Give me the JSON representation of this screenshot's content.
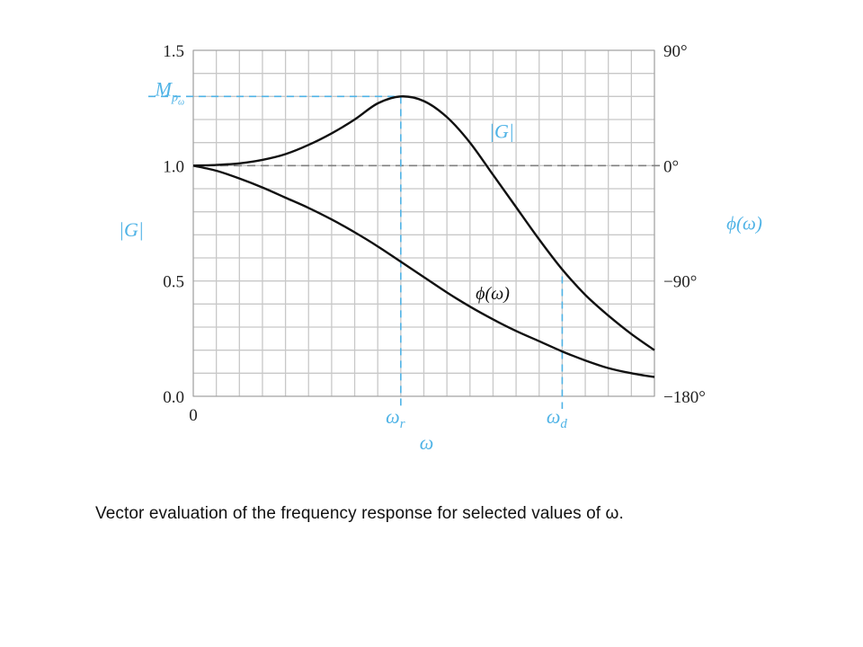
{
  "caption": "Vector evaluation of the frequency response for selected values of ω.",
  "colors": {
    "annotation": "#4fb3e6",
    "curve": "#111111",
    "grid": "#c8c8c8",
    "reference": "#808080"
  },
  "chart_data": {
    "type": "line",
    "grid": true,
    "xlabel": "ω",
    "x_ticks": [
      {
        "value": 0,
        "label": "0"
      }
    ],
    "x_annotations": [
      {
        "name": "omega_r",
        "value": 0.45,
        "base": "ω",
        "sub": "r"
      },
      {
        "name": "omega_d",
        "value": 0.8,
        "base": "ω",
        "sub": "d"
      }
    ],
    "left_axis": {
      "label": "|G|",
      "ylim": [
        0,
        1.5
      ],
      "ticks": [
        "0.0",
        "0.5",
        "1.0",
        "1.5"
      ],
      "peak_label": {
        "base": "M",
        "sub": "p",
        "subsub": "ω",
        "value": 1.3
      }
    },
    "right_axis": {
      "label": "ϕ(ω)",
      "ylim": [
        -180,
        90
      ],
      "ticks": [
        "−180°",
        "−90°",
        "0°",
        "90°"
      ]
    },
    "series": [
      {
        "name": "|G|",
        "axis": "left",
        "label": "|G|",
        "x": [
          0,
          0.05,
          0.1,
          0.15,
          0.2,
          0.25,
          0.3,
          0.35,
          0.4,
          0.45,
          0.5,
          0.55,
          0.6,
          0.65,
          0.7,
          0.75,
          0.8,
          0.85,
          0.9,
          0.95,
          1.0
        ],
        "y": [
          1.0,
          1.003,
          1.01,
          1.025,
          1.05,
          1.09,
          1.14,
          1.2,
          1.27,
          1.3,
          1.28,
          1.21,
          1.1,
          0.96,
          0.82,
          0.68,
          0.55,
          0.44,
          0.35,
          0.27,
          0.2
        ]
      },
      {
        "name": "ϕ(ω)",
        "axis": "right",
        "label": "ϕ(ω)",
        "x": [
          0,
          0.05,
          0.1,
          0.15,
          0.2,
          0.25,
          0.3,
          0.35,
          0.4,
          0.45,
          0.5,
          0.55,
          0.6,
          0.65,
          0.7,
          0.75,
          0.8,
          0.85,
          0.9,
          0.95,
          1.0
        ],
        "y": [
          0,
          -4,
          -10,
          -17,
          -25,
          -33,
          -42,
          -52,
          -63,
          -75,
          -87,
          -99,
          -110,
          -120,
          -129,
          -137,
          -145,
          -152,
          -158,
          -162,
          -165
        ]
      }
    ],
    "reference_line": {
      "axis": "left",
      "value": 1.0,
      "style": "dashed"
    }
  }
}
